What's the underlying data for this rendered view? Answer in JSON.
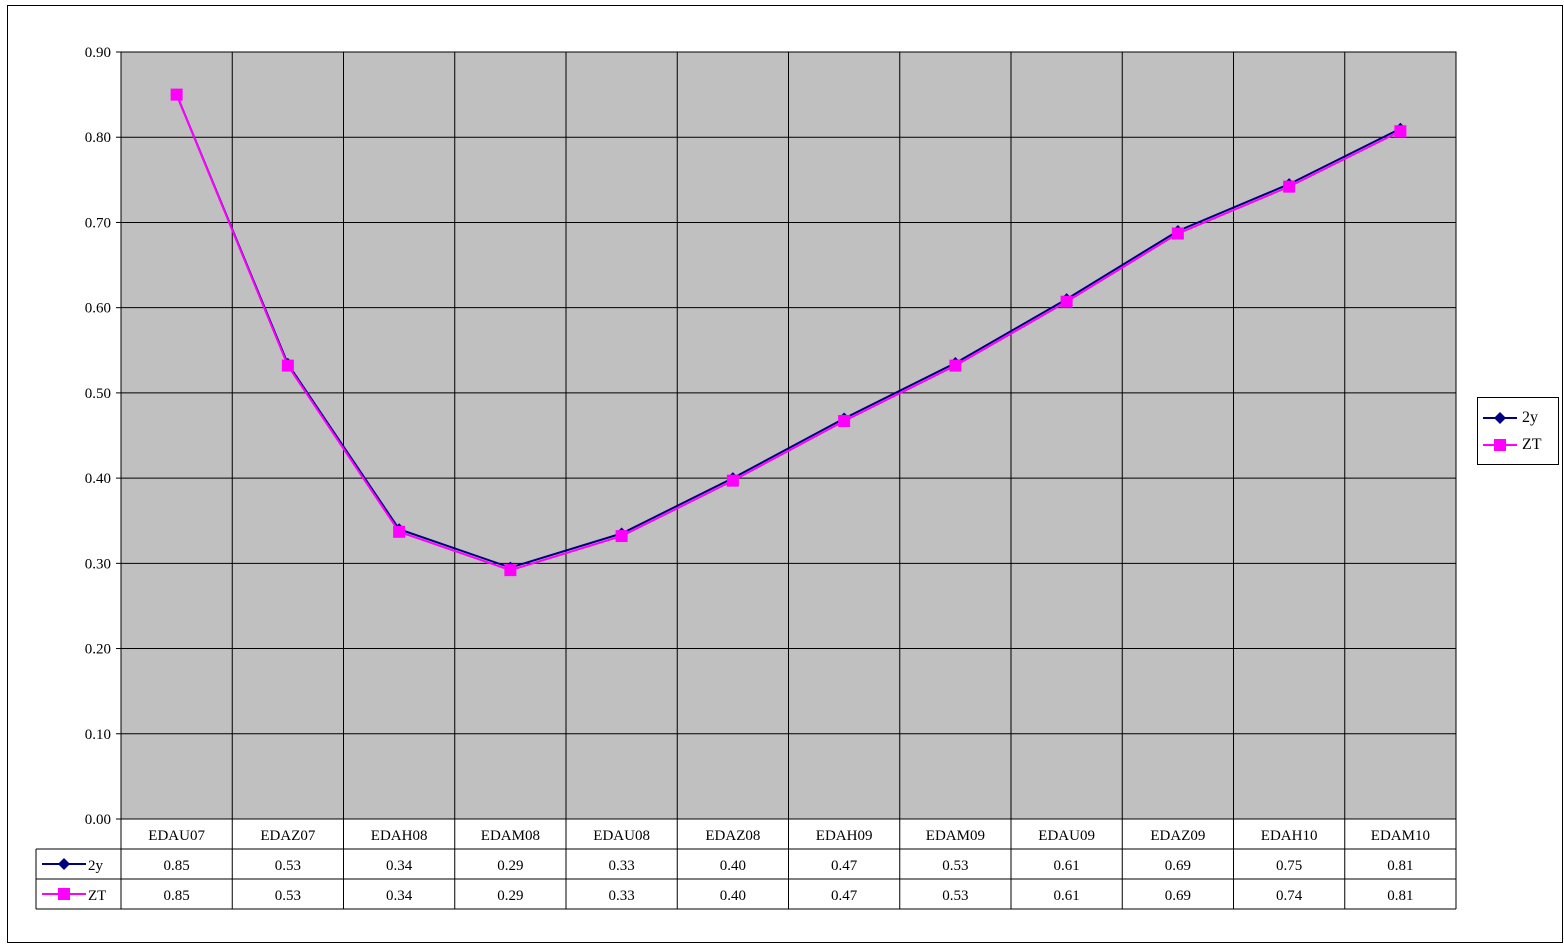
{
  "chart_data": {
    "type": "line",
    "categories": [
      "EDAU07",
      "EDAZ07",
      "EDAH08",
      "EDAM08",
      "EDAU08",
      "EDAZ08",
      "EDAH09",
      "EDAM09",
      "EDAU09",
      "EDAZ09",
      "EDAH10",
      "EDAM10"
    ],
    "y_ticks": [
      "0.00",
      "0.10",
      "0.20",
      "0.30",
      "0.40",
      "0.50",
      "0.60",
      "0.70",
      "0.80",
      "0.90"
    ],
    "ylim": [
      0,
      0.9
    ],
    "grid": true,
    "plot_background": "#c0c0c0",
    "legend_position": "right",
    "series": [
      {
        "name": "2y",
        "color": "#000080",
        "marker": "diamond",
        "values": [
          0.85,
          0.534,
          0.34,
          0.295,
          0.335,
          0.4,
          0.47,
          0.535,
          0.61,
          0.69,
          0.745,
          0.81
        ],
        "table_values": [
          "0.85",
          "0.53",
          "0.34",
          "0.29",
          "0.33",
          "0.40",
          "0.47",
          "0.53",
          "0.61",
          "0.69",
          "0.75",
          "0.81"
        ]
      },
      {
        "name": "ZT",
        "color": "#ff00ff",
        "marker": "square",
        "values": [
          0.85,
          0.532,
          0.337,
          0.292,
          0.332,
          0.397,
          0.467,
          0.532,
          0.607,
          0.687,
          0.742,
          0.807
        ],
        "table_values": [
          "0.85",
          "0.53",
          "0.34",
          "0.29",
          "0.33",
          "0.40",
          "0.47",
          "0.53",
          "0.61",
          "0.69",
          "0.74",
          "0.81"
        ]
      }
    ]
  }
}
